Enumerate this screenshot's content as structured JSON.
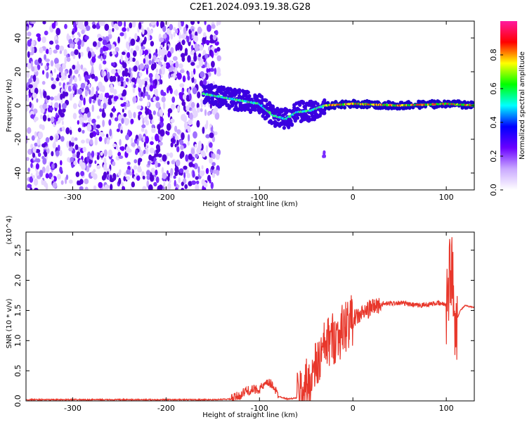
{
  "title": "C2E1.2024.093.19.38.G28",
  "chart_data": [
    {
      "type": "heatmap",
      "xlabel": "Height of straight line (km)",
      "ylabel": "Frequency (Hz)",
      "xlim": [
        -350,
        130
      ],
      "ylim": [
        -50,
        50
      ],
      "x_ticks": [
        -300,
        -200,
        -100,
        0,
        100
      ],
      "y_ticks": [
        -40,
        -20,
        0,
        20,
        40
      ],
      "noise_region": {
        "x_from": -350,
        "x_to": -143,
        "y_from": -50,
        "y_to": 50
      },
      "signal_track": [
        {
          "x": -160,
          "y": 7
        },
        {
          "x": -140,
          "y": 5
        },
        {
          "x": -120,
          "y": 3
        },
        {
          "x": -100,
          "y": 1
        },
        {
          "x": -85,
          "y": -6
        },
        {
          "x": -72,
          "y": -8
        },
        {
          "x": -60,
          "y": -4
        },
        {
          "x": -45,
          "y": -3
        },
        {
          "x": -30,
          "y": 0
        },
        {
          "x": 0,
          "y": 1
        },
        {
          "x": 50,
          "y": 0
        },
        {
          "x": 100,
          "y": 1
        },
        {
          "x": 130,
          "y": 0
        }
      ],
      "colorbar": {
        "label": "Normalized spectral amplitude",
        "ticks": [
          0.0,
          0.2,
          0.4,
          0.6,
          0.8
        ],
        "range": [
          0,
          1
        ],
        "colors": [
          "#ffffff",
          "#c9a8ff",
          "#6a00ff",
          "#0000ff",
          "#00ffff",
          "#00ff00",
          "#ffff00",
          "#ff0000",
          "#ff1aa0"
        ]
      }
    },
    {
      "type": "line",
      "xlabel": "Height of straight line (km)",
      "ylabel": "SNR (10 * v/v)",
      "y_multiplier": "(x10^4)",
      "xlim": [
        -350,
        130
      ],
      "ylim": [
        0,
        2.8
      ],
      "x_ticks": [
        -300,
        -200,
        -100,
        0,
        100
      ],
      "y_ticks": [
        0.0,
        0.5,
        1.0,
        1.5,
        2.0,
        2.5
      ],
      "color": "#e8372b",
      "series": [
        {
          "x": [
            -350,
            -300,
            -250,
            -200,
            -150,
            -130,
            -120,
            -115,
            -100,
            -90,
            -85,
            -80,
            -70,
            -60,
            -55,
            -50,
            -45,
            -40,
            -35,
            -30,
            -25,
            -20,
            -15,
            -10,
            -5,
            0,
            10,
            20,
            30,
            40,
            50,
            60,
            70,
            80,
            90,
            100,
            105,
            110,
            115,
            120,
            130
          ],
          "y": [
            0.02,
            0.02,
            0.02,
            0.02,
            0.02,
            0.03,
            0.1,
            0.16,
            0.2,
            0.3,
            0.25,
            0.08,
            0.03,
            0.05,
            0.15,
            0.25,
            0.35,
            0.55,
            0.7,
            0.9,
            1.0,
            1.05,
            1.1,
            1.2,
            1.3,
            1.35,
            1.45,
            1.55,
            1.6,
            1.62,
            1.63,
            1.6,
            1.58,
            1.6,
            1.62,
            1.6,
            2.3,
            1.3,
            1.5,
            1.58,
            1.55
          ]
        }
      ]
    }
  ]
}
